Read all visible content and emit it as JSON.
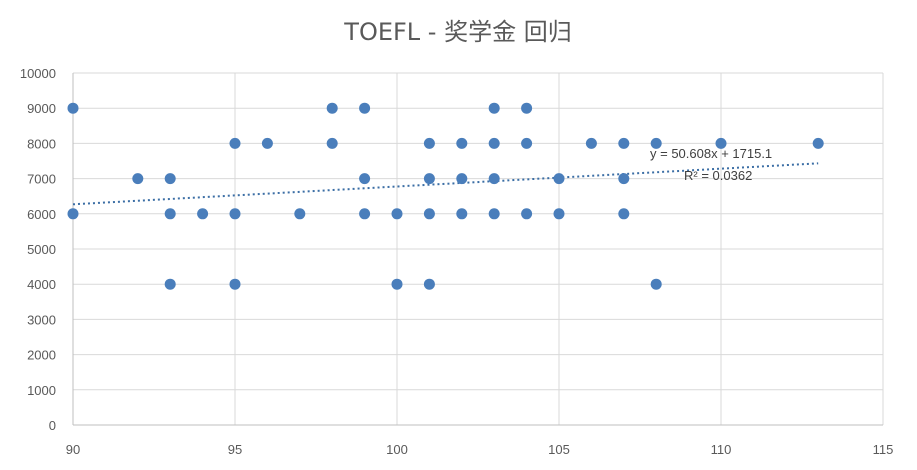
{
  "chart_data": {
    "type": "scatter",
    "title": "TOEFL - 奖学金 回归",
    "xlabel": "",
    "ylabel": "",
    "xlim": [
      90,
      115
    ],
    "ylim": [
      0,
      10000
    ],
    "x_ticks": [
      90,
      95,
      100,
      105,
      110,
      115
    ],
    "y_ticks": [
      0,
      1000,
      2000,
      3000,
      4000,
      5000,
      6000,
      7000,
      8000,
      9000,
      10000
    ],
    "grid": true,
    "legend": "none",
    "colors": {
      "points": "#4a7ebb",
      "trendline": "#3b6ea5"
    },
    "points": [
      {
        "x": 90,
        "y": 9000
      },
      {
        "x": 90,
        "y": 6000
      },
      {
        "x": 92,
        "y": 7000
      },
      {
        "x": 93,
        "y": 7000
      },
      {
        "x": 93,
        "y": 6000
      },
      {
        "x": 93,
        "y": 4000
      },
      {
        "x": 94,
        "y": 6000
      },
      {
        "x": 95,
        "y": 8000
      },
      {
        "x": 95,
        "y": 6000
      },
      {
        "x": 95,
        "y": 4000
      },
      {
        "x": 96,
        "y": 8000
      },
      {
        "x": 97,
        "y": 6000
      },
      {
        "x": 98,
        "y": 9000
      },
      {
        "x": 98,
        "y": 8000
      },
      {
        "x": 99,
        "y": 9000
      },
      {
        "x": 99,
        "y": 7000
      },
      {
        "x": 99,
        "y": 6000
      },
      {
        "x": 100,
        "y": 6000
      },
      {
        "x": 100,
        "y": 4000
      },
      {
        "x": 101,
        "y": 8000
      },
      {
        "x": 101,
        "y": 7000
      },
      {
        "x": 101,
        "y": 6000
      },
      {
        "x": 101,
        "y": 4000
      },
      {
        "x": 102,
        "y": 8000
      },
      {
        "x": 102,
        "y": 7000
      },
      {
        "x": 102,
        "y": 6000
      },
      {
        "x": 103,
        "y": 9000
      },
      {
        "x": 103,
        "y": 8000
      },
      {
        "x": 103,
        "y": 7000
      },
      {
        "x": 103,
        "y": 6000
      },
      {
        "x": 104,
        "y": 9000
      },
      {
        "x": 104,
        "y": 8000
      },
      {
        "x": 104,
        "y": 6000
      },
      {
        "x": 105,
        "y": 7000
      },
      {
        "x": 105,
        "y": 6000
      },
      {
        "x": 106,
        "y": 8000
      },
      {
        "x": 107,
        "y": 8000
      },
      {
        "x": 107,
        "y": 7000
      },
      {
        "x": 107,
        "y": 6000
      },
      {
        "x": 108,
        "y": 8000
      },
      {
        "x": 108,
        "y": 4000
      },
      {
        "x": 110,
        "y": 8000
      },
      {
        "x": 113,
        "y": 8000
      }
    ],
    "trendline": {
      "type": "linear",
      "slope": 50.608,
      "intercept": 1715.1,
      "x_range": [
        90,
        113
      ],
      "equation_label": "y = 50.608x + 1715.1",
      "r2_label": "R² = 0.0362"
    }
  }
}
